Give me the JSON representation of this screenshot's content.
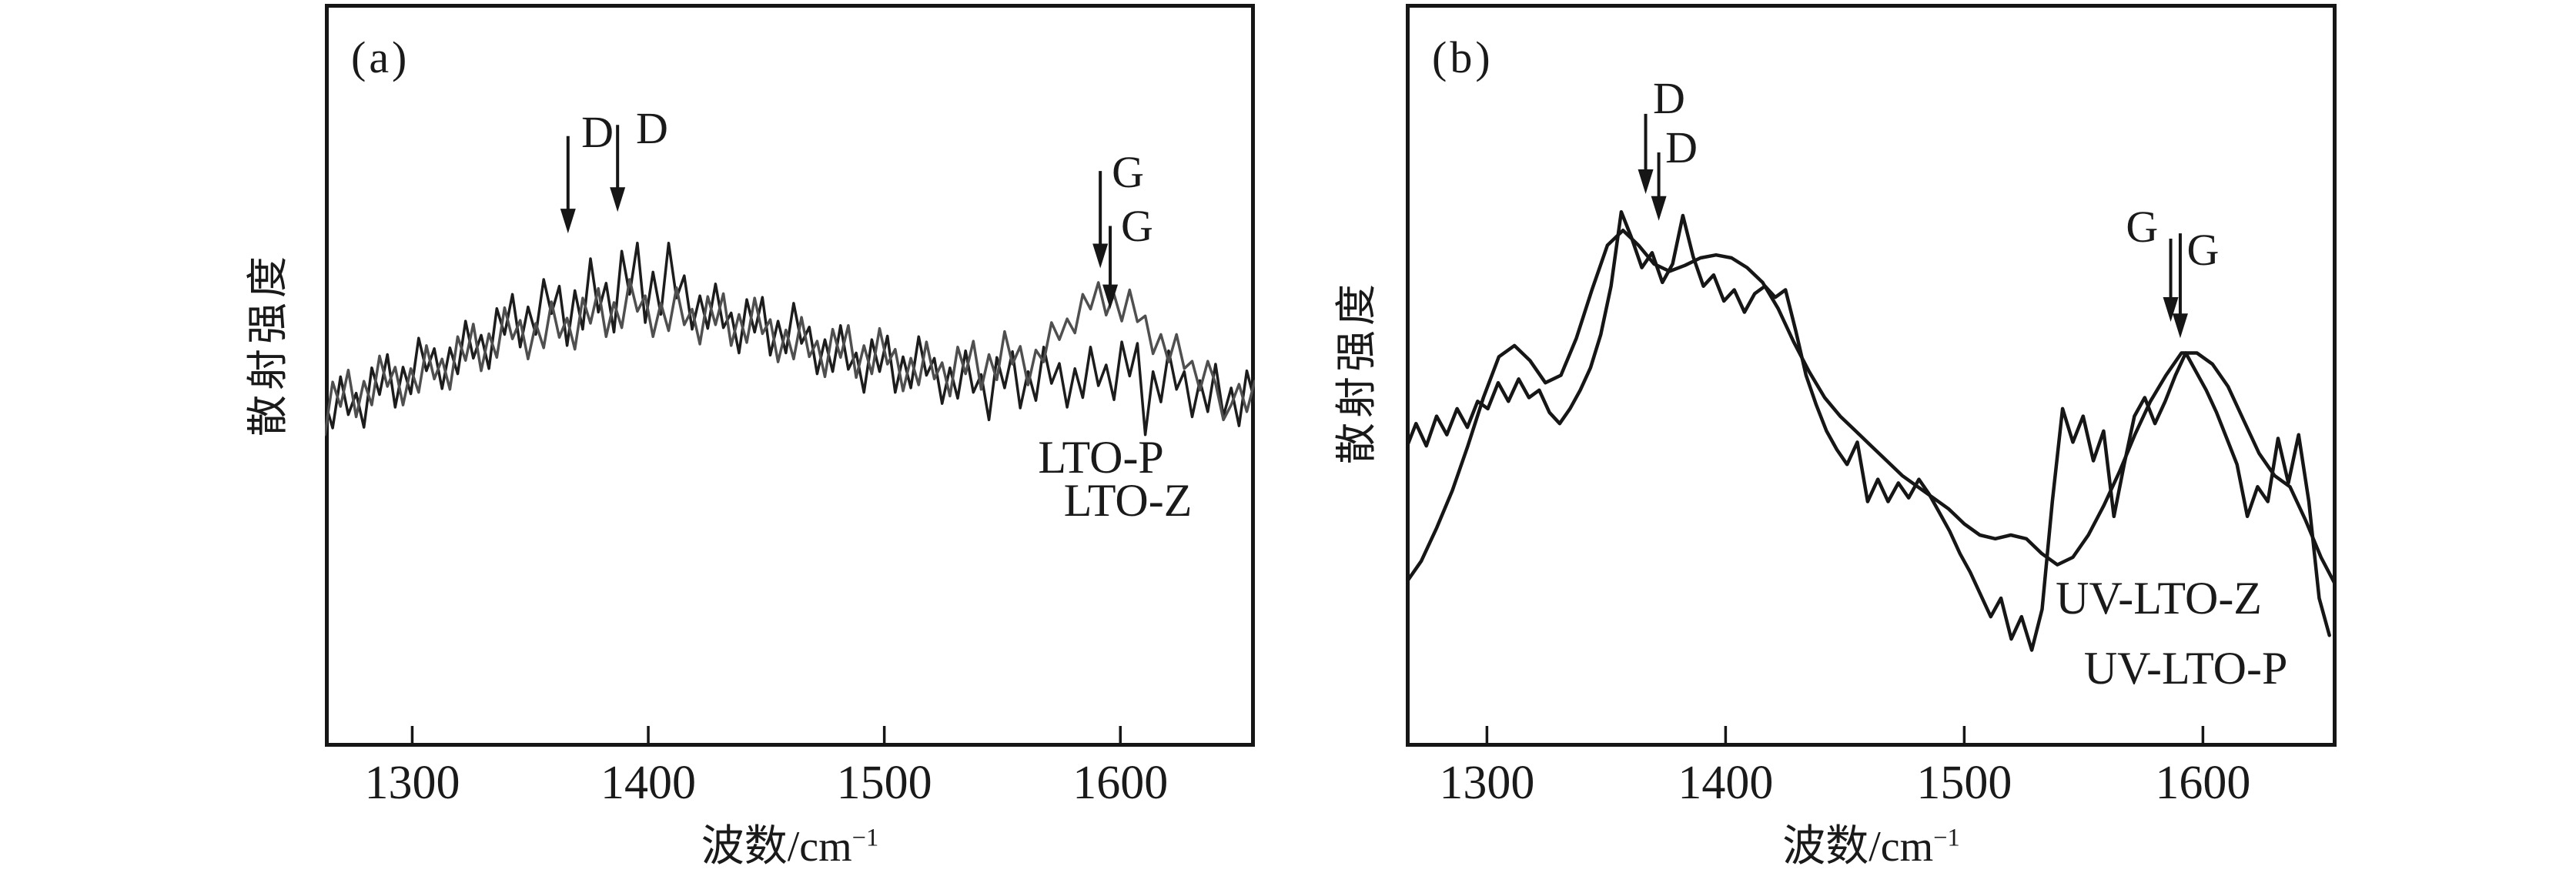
{
  "chart_data": [
    {
      "type": "line",
      "panel_label": "(a)",
      "title": "",
      "xlabel_base": "波数/cm",
      "xlabel_sup": "−1",
      "ylabel": "散射强度",
      "x_range": [
        1263,
        1657
      ],
      "ylim": [
        0,
        1
      ],
      "grid": false,
      "legend_position": "none",
      "frame_color": "#161616",
      "x_ticks": [
        1300,
        1400,
        1500,
        1600
      ],
      "series": [
        {
          "name": "LTO-Z",
          "color": "#1c1c1c",
          "width": 3.5,
          "x_start": 1263,
          "x_step": 3.31,
          "values": [
            0.465,
            0.429,
            0.498,
            0.447,
            0.476,
            0.43,
            0.51,
            0.474,
            0.528,
            0.457,
            0.511,
            0.475,
            0.55,
            0.506,
            0.536,
            0.482,
            0.537,
            0.502,
            0.573,
            0.523,
            0.554,
            0.509,
            0.59,
            0.555,
            0.609,
            0.538,
            0.592,
            0.555,
            0.629,
            0.583,
            0.62,
            0.54,
            0.614,
            0.562,
            0.657,
            0.585,
            0.624,
            0.558,
            0.667,
            0.609,
            0.678,
            0.571,
            0.639,
            0.582,
            0.678,
            0.604,
            0.634,
            0.562,
            0.607,
            0.563,
            0.623,
            0.564,
            0.584,
            0.53,
            0.602,
            0.558,
            0.605,
            0.527,
            0.573,
            0.53,
            0.597,
            0.543,
            0.565,
            0.502,
            0.548,
            0.505,
            0.567,
            0.508,
            0.53,
            0.477,
            0.548,
            0.505,
            0.553,
            0.477,
            0.525,
            0.483,
            0.552,
            0.5,
            0.523,
            0.462,
            0.51,
            0.469,
            0.533,
            0.477,
            0.501,
            0.44,
            0.524,
            0.483,
            0.532,
            0.456,
            0.505,
            0.466,
            0.538,
            0.489,
            0.516,
            0.457,
            0.509,
            0.47,
            0.538,
            0.486,
            0.514,
            0.467,
            0.545,
            0.499,
            0.543,
            0.42,
            0.505,
            0.464,
            0.533,
            0.481,
            0.505,
            0.444,
            0.493,
            0.451,
            0.515,
            0.445,
            0.483,
            0.432,
            0.506,
            0.465
          ]
        },
        {
          "name": "LTO-P",
          "color": "#4f4f4f",
          "width": 3.5,
          "x_start": 1263,
          "x_step": 3.31,
          "values": [
            0.42,
            0.491,
            0.458,
            0.507,
            0.444,
            0.492,
            0.46,
            0.526,
            0.485,
            0.511,
            0.46,
            0.509,
            0.477,
            0.54,
            0.495,
            0.522,
            0.481,
            0.552,
            0.52,
            0.569,
            0.506,
            0.556,
            0.524,
            0.591,
            0.549,
            0.574,
            0.522,
            0.57,
            0.537,
            0.599,
            0.551,
            0.577,
            0.535,
            0.604,
            0.57,
            0.617,
            0.552,
            0.598,
            0.564,
            0.629,
            0.586,
            0.607,
            0.552,
            0.597,
            0.56,
            0.618,
            0.568,
            0.589,
            0.542,
            0.606,
            0.568,
            0.61,
            0.54,
            0.582,
            0.544,
            0.604,
            0.556,
            0.575,
            0.518,
            0.561,
            0.522,
            0.578,
            0.525,
            0.546,
            0.498,
            0.562,
            0.524,
            0.567,
            0.497,
            0.54,
            0.502,
            0.563,
            0.515,
            0.535,
            0.479,
            0.523,
            0.487,
            0.545,
            0.495,
            0.517,
            0.472,
            0.538,
            0.502,
            0.546,
            0.481,
            0.528,
            0.494,
            0.559,
            0.515,
            0.539,
            0.487,
            0.534,
            0.518,
            0.571,
            0.548,
            0.576,
            0.557,
            0.609,
            0.589,
            0.625,
            0.581,
            0.609,
            0.573,
            0.615,
            0.572,
            0.58,
            0.529,
            0.555,
            0.518,
            0.555,
            0.509,
            0.519,
            0.48,
            0.519,
            0.489,
            0.44,
            0.46,
            0.488,
            0.451,
            0.492
          ]
        }
      ],
      "arrows": [
        {
          "band": "D",
          "x": 1366,
          "tail": 0.822,
          "head": 0.691
        },
        {
          "band": "D",
          "x": 1387,
          "tail": 0.837,
          "head": 0.72
        },
        {
          "band": "G",
          "x": 1591.5,
          "tail": 0.775,
          "head": 0.644
        },
        {
          "band": "G",
          "x": 1595.7,
          "tail": 0.701,
          "head": 0.589
        }
      ],
      "band_labels": [
        {
          "text": "D",
          "x": 1378.5,
          "y": 0.827
        },
        {
          "text": "D",
          "x": 1401.6,
          "y": 0.832
        },
        {
          "text": "G",
          "x": 1603.2,
          "y": 0.773
        },
        {
          "text": "G",
          "x": 1607.1,
          "y": 0.701
        }
      ],
      "sample_labels": [
        {
          "text": "LTO-P",
          "x": 1591.8,
          "y": 0.39
        },
        {
          "text": "LTO-Z",
          "x": 1603.2,
          "y": 0.332
        }
      ]
    },
    {
      "type": "line",
      "panel_label": "(b)",
      "title": "",
      "xlabel_base": "波数/cm",
      "xlabel_sup": "−1",
      "ylabel": "散射强度",
      "x_range": [
        1266,
        1656
      ],
      "ylim": [
        0,
        1
      ],
      "grid": false,
      "legend_position": "none",
      "frame_color": "#161616",
      "x_ticks": [
        1300,
        1400,
        1500,
        1600
      ],
      "series": [
        {
          "name": "UV-LTO-Z",
          "color": "#161616",
          "width": 4.5,
          "x_start": 1266,
          "x_step": 4.3,
          "values": [
            0.4,
            0.435,
            0.405,
            0.445,
            0.42,
            0.455,
            0.43,
            0.465,
            0.455,
            0.49,
            0.465,
            0.495,
            0.47,
            0.48,
            0.45,
            0.435,
            0.455,
            0.48,
            0.51,
            0.555,
            0.62,
            0.72,
            0.685,
            0.645,
            0.665,
            0.625,
            0.65,
            0.715,
            0.66,
            0.62,
            0.635,
            0.6,
            0.615,
            0.585,
            0.61,
            0.62,
            0.605,
            0.615,
            0.56,
            0.5,
            0.46,
            0.425,
            0.4,
            0.38,
            0.41,
            0.33,
            0.36,
            0.33,
            0.355,
            0.335,
            0.36,
            0.34,
            0.315,
            0.29,
            0.26,
            0.235,
            0.205,
            0.175,
            0.2,
            0.145,
            0.175,
            0.13,
            0.185,
            0.33,
            0.455,
            0.41,
            0.445,
            0.385,
            0.425,
            0.31,
            0.38,
            0.445,
            0.47,
            0.435,
            0.465,
            0.5,
            0.53,
            0.505,
            0.48,
            0.45,
            0.415,
            0.38,
            0.31,
            0.35,
            0.33,
            0.415,
            0.355,
            0.42,
            0.33,
            0.2,
            0.15
          ]
        },
        {
          "name": "UV-LTO-P",
          "color": "#161616",
          "width": 4.5,
          "x_start": 1266,
          "x_step": 6.5,
          "values": [
            0.22,
            0.25,
            0.295,
            0.345,
            0.405,
            0.47,
            0.525,
            0.54,
            0.52,
            0.49,
            0.5,
            0.55,
            0.615,
            0.675,
            0.695,
            0.675,
            0.65,
            0.64,
            0.648,
            0.658,
            0.662,
            0.658,
            0.645,
            0.625,
            0.59,
            0.545,
            0.505,
            0.47,
            0.445,
            0.425,
            0.405,
            0.385,
            0.365,
            0.35,
            0.335,
            0.32,
            0.3,
            0.285,
            0.28,
            0.285,
            0.28,
            0.26,
            0.245,
            0.255,
            0.285,
            0.325,
            0.37,
            0.42,
            0.465,
            0.5,
            0.53,
            0.53,
            0.515,
            0.485,
            0.44,
            0.395,
            0.365,
            0.35,
            0.305,
            0.255,
            0.215
          ]
        }
      ],
      "arrows": [
        {
          "band": "D",
          "x": 1366.5,
          "tail": 0.852,
          "head": 0.744
        },
        {
          "band": "D",
          "x": 1372.0,
          "tail": 0.8,
          "head": 0.708
        },
        {
          "band": "G",
          "x": 1586.5,
          "tail": 0.684,
          "head": 0.572
        },
        {
          "band": "G",
          "x": 1590.5,
          "tail": 0.691,
          "head": 0.55
        }
      ],
      "band_labels": [
        {
          "text": "D",
          "x": 1376.3,
          "y": 0.873
        },
        {
          "text": "D",
          "x": 1381.5,
          "y": 0.806
        },
        {
          "text": "G",
          "x": 1574.5,
          "y": 0.7
        },
        {
          "text": "G",
          "x": 1600.0,
          "y": 0.668
        }
      ],
      "sample_labels": [
        {
          "text": "UV-LTO-Z",
          "x": 1581.5,
          "y": 0.2
        },
        {
          "text": "UV-LTO-P",
          "x": 1592.8,
          "y": 0.106
        }
      ]
    }
  ]
}
